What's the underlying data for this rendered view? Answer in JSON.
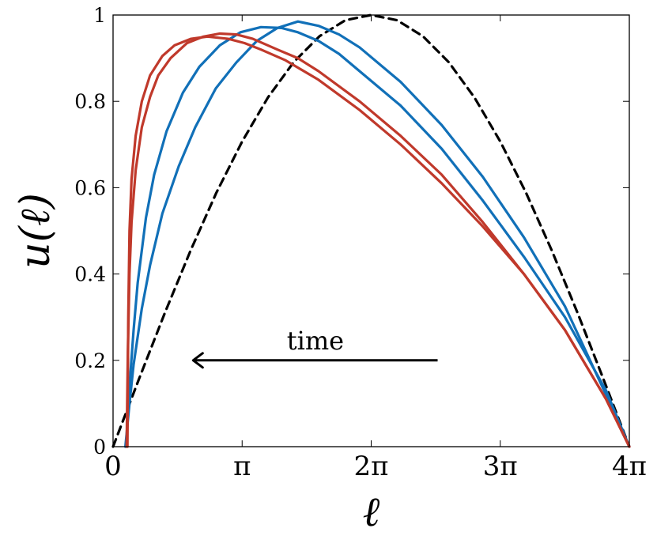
{
  "chart_data": {
    "type": "line",
    "xlabel": "ℓ",
    "ylabel": "u(ℓ)",
    "xlim": [
      0,
      12.566
    ],
    "ylim": [
      0,
      1
    ],
    "xticks": [
      {
        "value": 0,
        "label": "0"
      },
      {
        "value": 3.1416,
        "label": "π"
      },
      {
        "value": 6.2832,
        "label": "2π"
      },
      {
        "value": 9.4248,
        "label": "3π"
      },
      {
        "value": 12.566,
        "label": "4π"
      }
    ],
    "yticks": [
      {
        "value": 0,
        "label": "0"
      },
      {
        "value": 0.2,
        "label": "0.2"
      },
      {
        "value": 0.4,
        "label": "0.4"
      },
      {
        "value": 0.6,
        "label": "0.6"
      },
      {
        "value": 0.8,
        "label": "0.8"
      },
      {
        "value": 1,
        "label": "1"
      }
    ],
    "grid": false,
    "annotation": {
      "text": "time",
      "arrow_from": [
        7.9,
        0.2
      ],
      "arrow_to": [
        1.95,
        0.2
      ]
    },
    "series": [
      {
        "style": "dashed",
        "color": "#000000",
        "x": [
          0,
          0.628,
          1.257,
          1.885,
          2.513,
          3.142,
          3.77,
          4.398,
          5.027,
          5.655,
          6.283,
          6.912,
          7.54,
          8.168,
          8.796,
          9.425,
          10.053,
          10.681,
          11.31,
          11.938,
          12.566
        ],
        "y": [
          0,
          0.156,
          0.309,
          0.454,
          0.588,
          0.707,
          0.809,
          0.891,
          0.951,
          0.988,
          1.0,
          0.988,
          0.951,
          0.891,
          0.809,
          0.707,
          0.588,
          0.454,
          0.309,
          0.156,
          0
        ]
      },
      {
        "style": "solid",
        "color": "#1170b8",
        "x": [
          0.3,
          0.4,
          0.5,
          0.7,
          0.9,
          1.2,
          1.6,
          2.0,
          2.5,
          3.0,
          3.5,
          4.0,
          4.5,
          5.0,
          5.5,
          6.0,
          7.0,
          8.0,
          9.0,
          10.0,
          11.0,
          12.0,
          12.566
        ],
        "y": [
          0,
          0.1,
          0.19,
          0.32,
          0.42,
          0.54,
          0.65,
          0.74,
          0.83,
          0.89,
          0.94,
          0.97,
          0.985,
          0.975,
          0.955,
          0.925,
          0.845,
          0.745,
          0.625,
          0.485,
          0.325,
          0.12,
          0
        ]
      },
      {
        "style": "solid",
        "color": "#1170b8",
        "x": [
          0.32,
          0.4,
          0.5,
          0.6,
          0.8,
          1.0,
          1.3,
          1.7,
          2.1,
          2.6,
          3.1,
          3.6,
          4.1,
          4.5,
          5.0,
          5.5,
          6.0,
          7.0,
          8.0,
          9.0,
          10.0,
          11.0,
          12.0,
          12.566
        ],
        "y": [
          0,
          0.14,
          0.27,
          0.38,
          0.53,
          0.63,
          0.73,
          0.82,
          0.88,
          0.93,
          0.96,
          0.972,
          0.97,
          0.96,
          0.94,
          0.91,
          0.87,
          0.79,
          0.69,
          0.57,
          0.44,
          0.3,
          0.13,
          0
        ]
      },
      {
        "style": "solid",
        "color": "#c0392b",
        "x": [
          0.33,
          0.36,
          0.4,
          0.45,
          0.55,
          0.7,
          0.9,
          1.1,
          1.4,
          1.8,
          2.2,
          2.6,
          3.0,
          3.4,
          4.0,
          4.5,
          5.0,
          6.0,
          7.0,
          8.0,
          9.0,
          10.0,
          11.0,
          12.0,
          12.566
        ],
        "y": [
          0,
          0.22,
          0.4,
          0.52,
          0.64,
          0.74,
          0.81,
          0.86,
          0.9,
          0.935,
          0.95,
          0.957,
          0.955,
          0.945,
          0.92,
          0.9,
          0.87,
          0.8,
          0.72,
          0.63,
          0.52,
          0.4,
          0.27,
          0.11,
          0
        ]
      },
      {
        "style": "solid",
        "color": "#c0392b",
        "x": [
          0.35,
          0.37,
          0.4,
          0.45,
          0.55,
          0.7,
          0.9,
          1.2,
          1.5,
          1.9,
          2.3,
          2.8,
          3.2,
          3.6,
          4.2,
          5.0,
          6.0,
          7.0,
          8.0,
          9.0,
          10.0,
          11.0,
          12.0,
          12.566
        ],
        "y": [
          0,
          0.3,
          0.5,
          0.62,
          0.72,
          0.8,
          0.86,
          0.905,
          0.93,
          0.945,
          0.95,
          0.945,
          0.935,
          0.92,
          0.895,
          0.85,
          0.78,
          0.7,
          0.61,
          0.51,
          0.4,
          0.27,
          0.11,
          0
        ]
      }
    ]
  }
}
